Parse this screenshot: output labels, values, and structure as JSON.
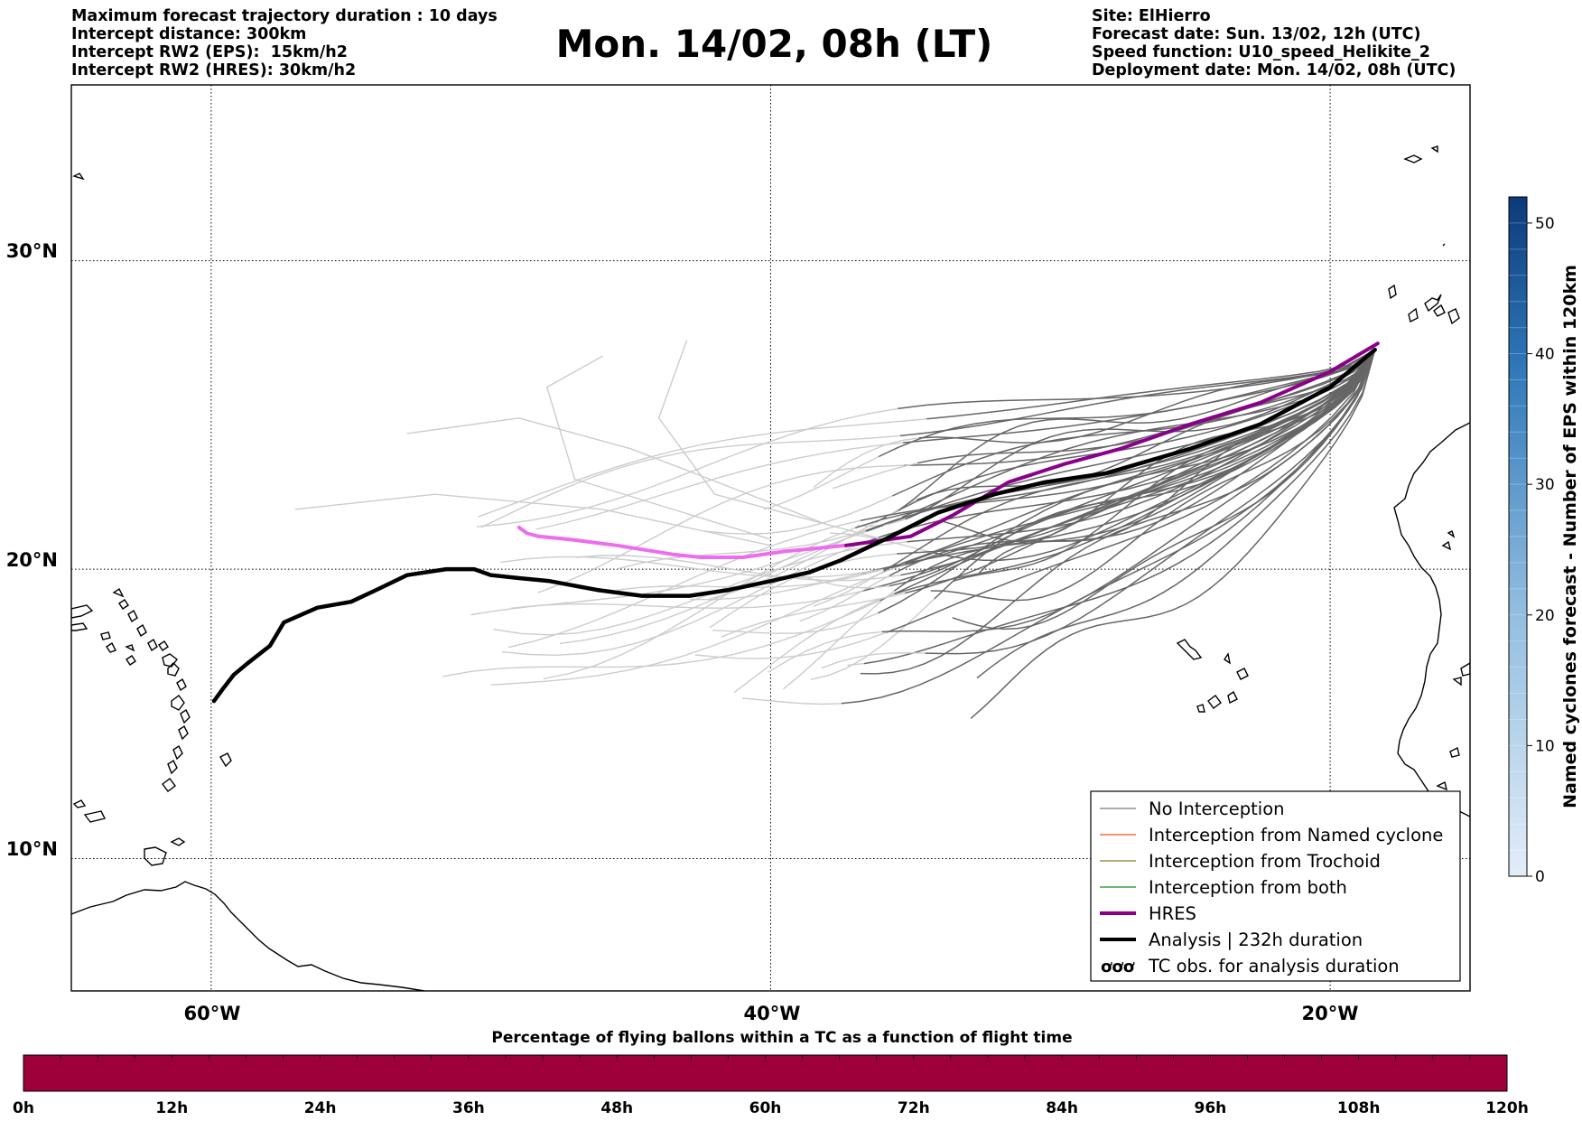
{
  "header": {
    "left": [
      "Maximum forecast trajectory duration : 10 days",
      "Intercept distance: 300km",
      "Intercept RW2 (EPS):  15km/h2",
      "Intercept RW2 (HRES): 30km/h2"
    ],
    "right": [
      "Site: ElHierro",
      "Forecast date: Sun. 13/02, 12h (UTC)",
      "Speed function: U10_speed_Helikite_2",
      "Deployment date: Mon. 14/02, 08h (UTC)"
    ],
    "title": "Mon. 14/02, 08h (LT)"
  },
  "map": {
    "lat_labels": [
      "30°N",
      "20°N",
      "10°N"
    ],
    "lon_labels": [
      "60°W",
      "40°W",
      "20°W"
    ],
    "lon_range": [
      -65,
      -15
    ],
    "lat_range": [
      5.3,
      35.3
    ]
  },
  "legend": {
    "items": [
      {
        "label": "No Interception",
        "color": "#777777",
        "style": "thin"
      },
      {
        "label": "Interception from Named cyclone",
        "color": "#e8501b",
        "style": "thin"
      },
      {
        "label": "Interception from Trochoid",
        "color": "#808020",
        "style": "thin"
      },
      {
        "label": "Interception from both",
        "color": "#1f8a1f",
        "style": "thin"
      },
      {
        "label": "HRES",
        "color": "#8b008b",
        "style": "thick"
      },
      {
        "label": "Analysis | 232h duration",
        "color": "#000000",
        "style": "thick"
      },
      {
        "label": "TC obs. for analysis duration",
        "color": "#000000",
        "style": "symbol"
      }
    ]
  },
  "colorbar": {
    "label": "Named cyclones forecast - Number of EPS within 120km",
    "ticks": [
      "0",
      "10",
      "20",
      "30",
      "40",
      "50"
    ],
    "range": [
      0,
      52
    ]
  },
  "timebar": {
    "title": "Percentage of flying ballons within a TC as a function of flight time",
    "ticks": [
      "0h",
      "12h",
      "24h",
      "36h",
      "48h",
      "60h",
      "72h",
      "84h",
      "96h",
      "108h",
      "120h"
    ],
    "fill_color": "#9e003a"
  },
  "colors": {
    "hres": "#8b008b",
    "hres_faded": "#ee6cee",
    "analysis": "#000000",
    "eps_intercept_zone": "#666666",
    "eps_outside": "#cccccc"
  },
  "trajectories": {
    "analysis": [
      [
        -59.9,
        15.5
      ],
      [
        -59.6,
        15.9
      ],
      [
        -59.2,
        16.4
      ],
      [
        -58.7,
        16.8
      ],
      [
        -57.9,
        17.4
      ],
      [
        -57.4,
        18.2
      ],
      [
        -56.2,
        18.7
      ],
      [
        -55.0,
        18.9
      ],
      [
        -54.1,
        19.3
      ],
      [
        -53.0,
        19.8
      ],
      [
        -51.6,
        20.0
      ],
      [
        -50.6,
        20.0
      ],
      [
        -50.0,
        19.8
      ],
      [
        -49.0,
        19.7
      ],
      [
        -47.9,
        19.6
      ],
      [
        -46.2,
        19.3
      ],
      [
        -44.6,
        19.1
      ],
      [
        -42.9,
        19.1
      ],
      [
        -41.5,
        19.3
      ],
      [
        -40.0,
        19.6
      ],
      [
        -38.6,
        19.9
      ],
      [
        -37.5,
        20.3
      ],
      [
        -35.7,
        21.1
      ],
      [
        -34.0,
        21.9
      ],
      [
        -32.0,
        22.5
      ],
      [
        -30.2,
        22.9
      ],
      [
        -28.0,
        23.2
      ],
      [
        -25.0,
        24.0
      ],
      [
        -22.5,
        24.8
      ],
      [
        -20.0,
        26.0
      ],
      [
        -18.4,
        27.2
      ]
    ],
    "hres": [
      [
        -49.0,
        21.4
      ],
      [
        -48.7,
        21.2
      ],
      [
        -48.3,
        21.1
      ],
      [
        -47.2,
        21.0
      ],
      [
        -45.5,
        20.8
      ],
      [
        -43.5,
        20.5
      ],
      [
        -42.5,
        20.4
      ],
      [
        -41.0,
        20.4
      ],
      [
        -39.5,
        20.6
      ],
      [
        -37.3,
        20.8
      ],
      [
        -35.0,
        21.1
      ],
      [
        -33.5,
        21.8
      ],
      [
        -31.5,
        22.9
      ],
      [
        -29.5,
        23.5
      ],
      [
        -27.5,
        24.0
      ],
      [
        -25.0,
        24.8
      ],
      [
        -22.5,
        25.5
      ],
      [
        -20.0,
        26.5
      ],
      [
        -18.3,
        27.4
      ]
    ]
  }
}
